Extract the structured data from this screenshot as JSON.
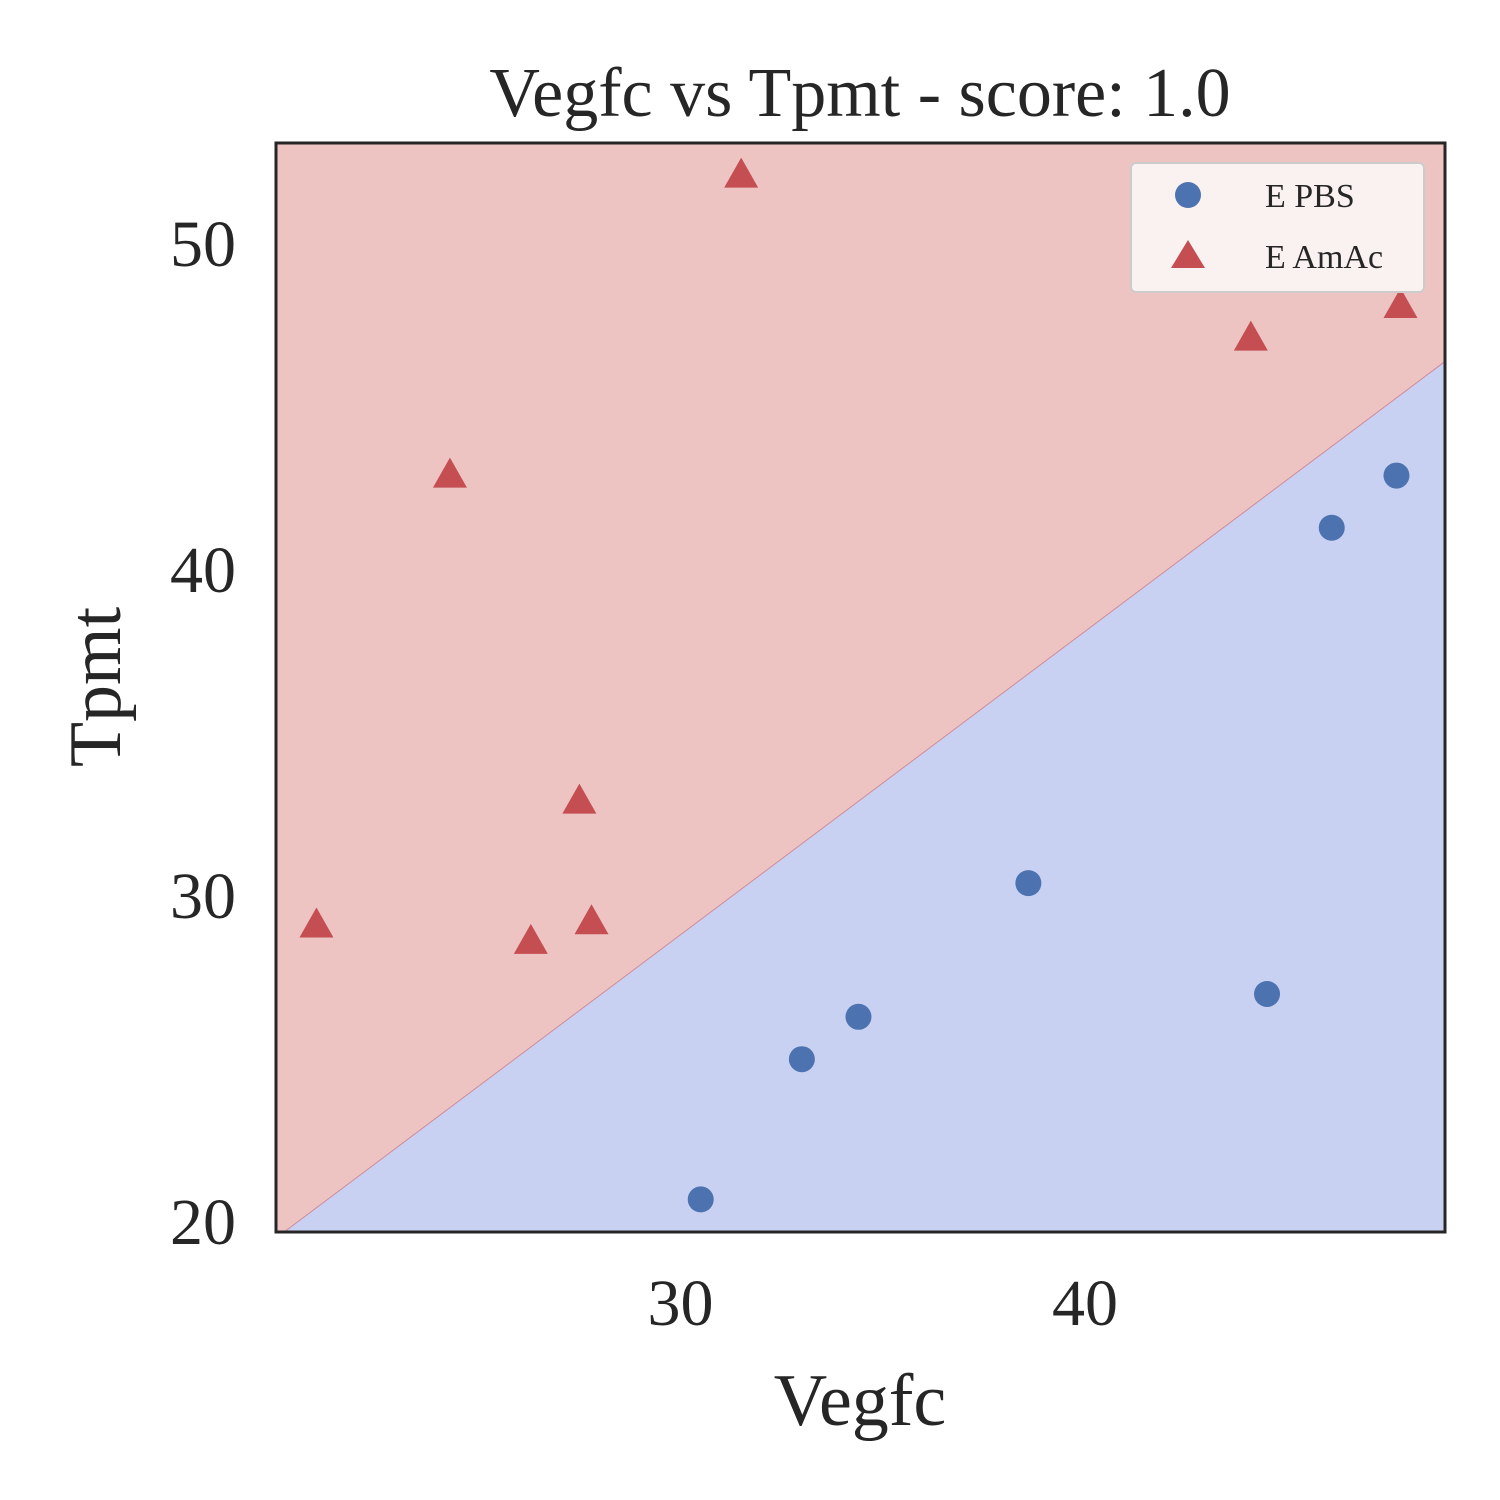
{
  "chart_data": {
    "type": "scatter",
    "title": "Vegfc vs Tpmt - score: 1.0",
    "xlabel": "Vegfc",
    "ylabel": "Tpmt",
    "xlim": [
      20.0,
      48.9
    ],
    "ylim": [
      19.7,
      53.1
    ],
    "xticks": [
      30,
      40
    ],
    "yticks": [
      20,
      30,
      40,
      50
    ],
    "grid": false,
    "legend": "top-right",
    "decision_boundary": {
      "points": [
        [
          20.2,
          19.7
        ],
        [
          48.9,
          46.4
        ]
      ],
      "region_above": "E AmAc",
      "region_below": "E PBS"
    },
    "series": [
      {
        "name": "E PBS",
        "marker": "circle",
        "color": "#4c72b0",
        "points": [
          [
            30.5,
            20.7
          ],
          [
            33.0,
            25.0
          ],
          [
            34.4,
            26.3
          ],
          [
            38.6,
            30.4
          ],
          [
            44.5,
            27.0
          ],
          [
            46.1,
            41.3
          ],
          [
            47.7,
            42.9
          ]
        ]
      },
      {
        "name": "E AmAc",
        "marker": "triangle",
        "color": "#c44e52",
        "points": [
          [
            21.0,
            29.1
          ],
          [
            24.3,
            42.9
          ],
          [
            26.3,
            28.6
          ],
          [
            27.5,
            32.9
          ],
          [
            27.8,
            29.2
          ],
          [
            31.5,
            52.1
          ],
          [
            44.1,
            47.1
          ],
          [
            47.8,
            48.1
          ]
        ]
      }
    ],
    "colors": {
      "region_above": "#eec4c3",
      "region_below": "#c9d1f2",
      "boundary_line": "#d08a9a",
      "axes_frame": "#262626",
      "legend_bg": "#faf2f1",
      "legend_border": "#cccccc"
    }
  }
}
